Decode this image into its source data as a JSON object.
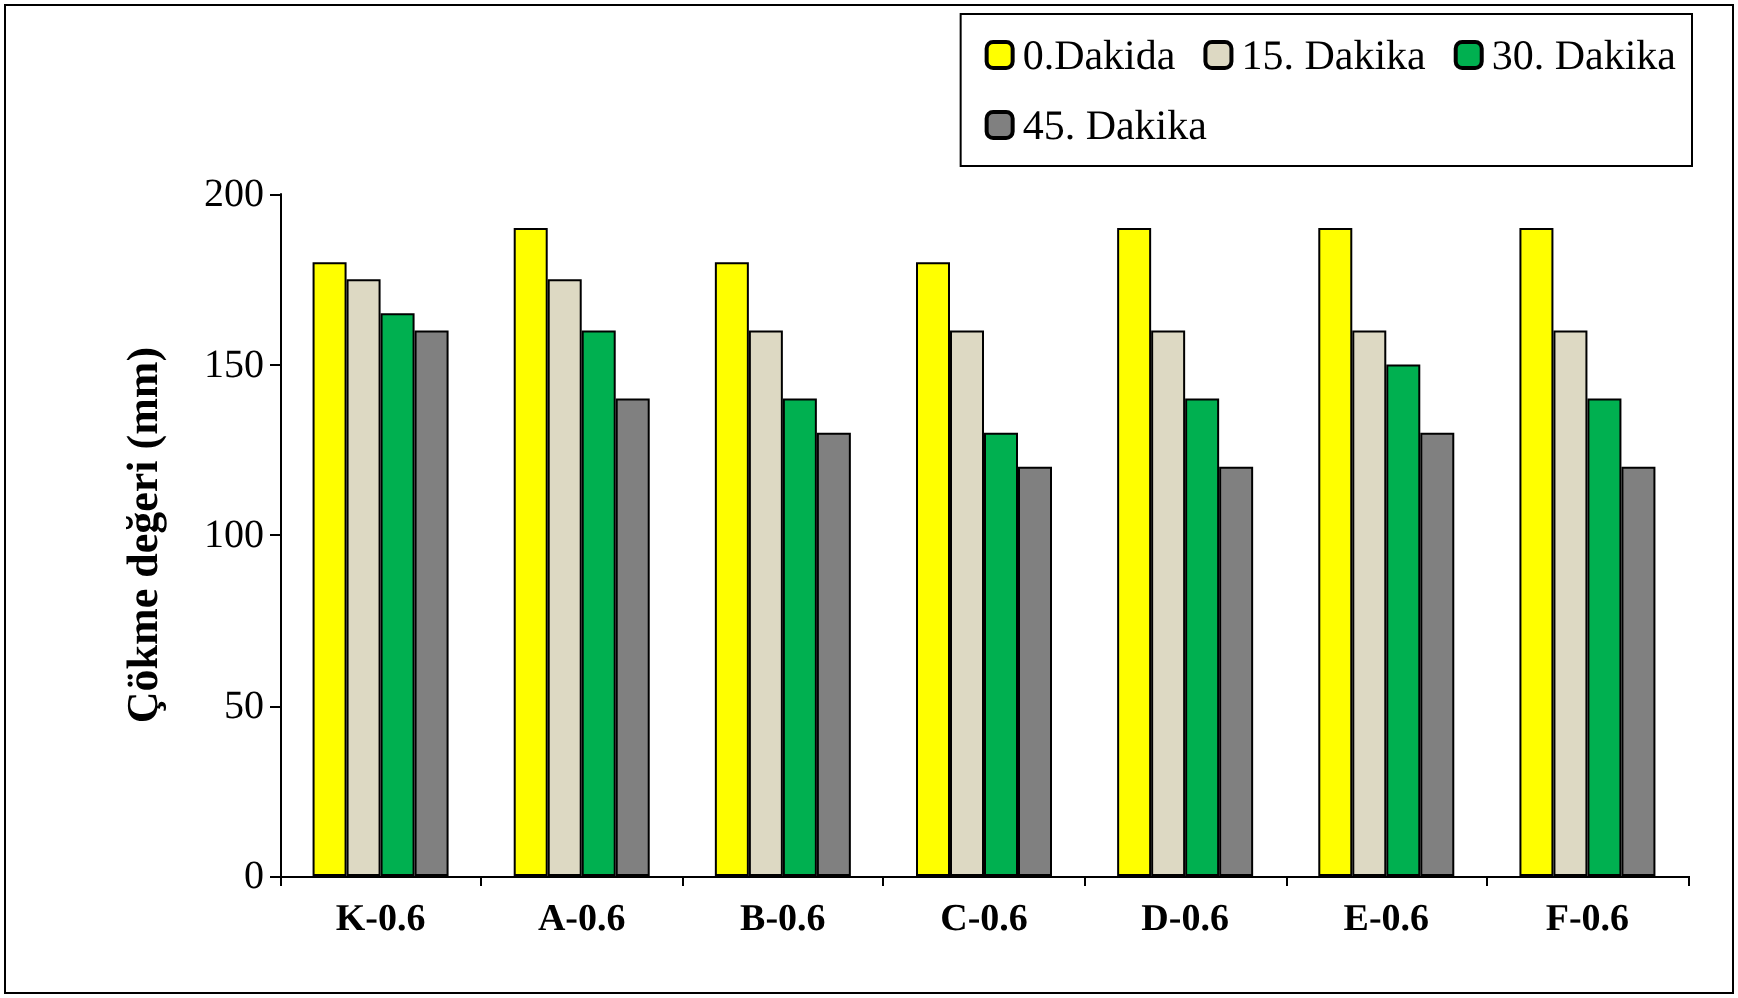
{
  "chart_data": {
    "type": "bar",
    "ylabel": "Çökme değeri (mm)",
    "categories": [
      "K-0.6",
      "A-0.6",
      "B-0.6",
      "C-0.6",
      "D-0.6",
      "E-0.6",
      "F-0.6"
    ],
    "series": [
      {
        "name": "0.Dakida",
        "color": "#ffff00",
        "values": [
          180,
          190,
          180,
          180,
          190,
          190,
          190
        ]
      },
      {
        "name": "15. Dakika",
        "color": "#ddd9c3",
        "values": [
          175,
          175,
          160,
          160,
          160,
          160,
          160
        ]
      },
      {
        "name": "30. Dakika",
        "color": "#00b050",
        "values": [
          165,
          160,
          140,
          130,
          140,
          150,
          140
        ]
      },
      {
        "name": "45. Dakika",
        "color": "#808080",
        "values": [
          160,
          140,
          130,
          120,
          120,
          130,
          120
        ]
      }
    ],
    "ylim": [
      0,
      200
    ],
    "yticks": [
      0,
      50,
      100,
      150,
      200
    ],
    "grid": false,
    "legend": "top right"
  }
}
